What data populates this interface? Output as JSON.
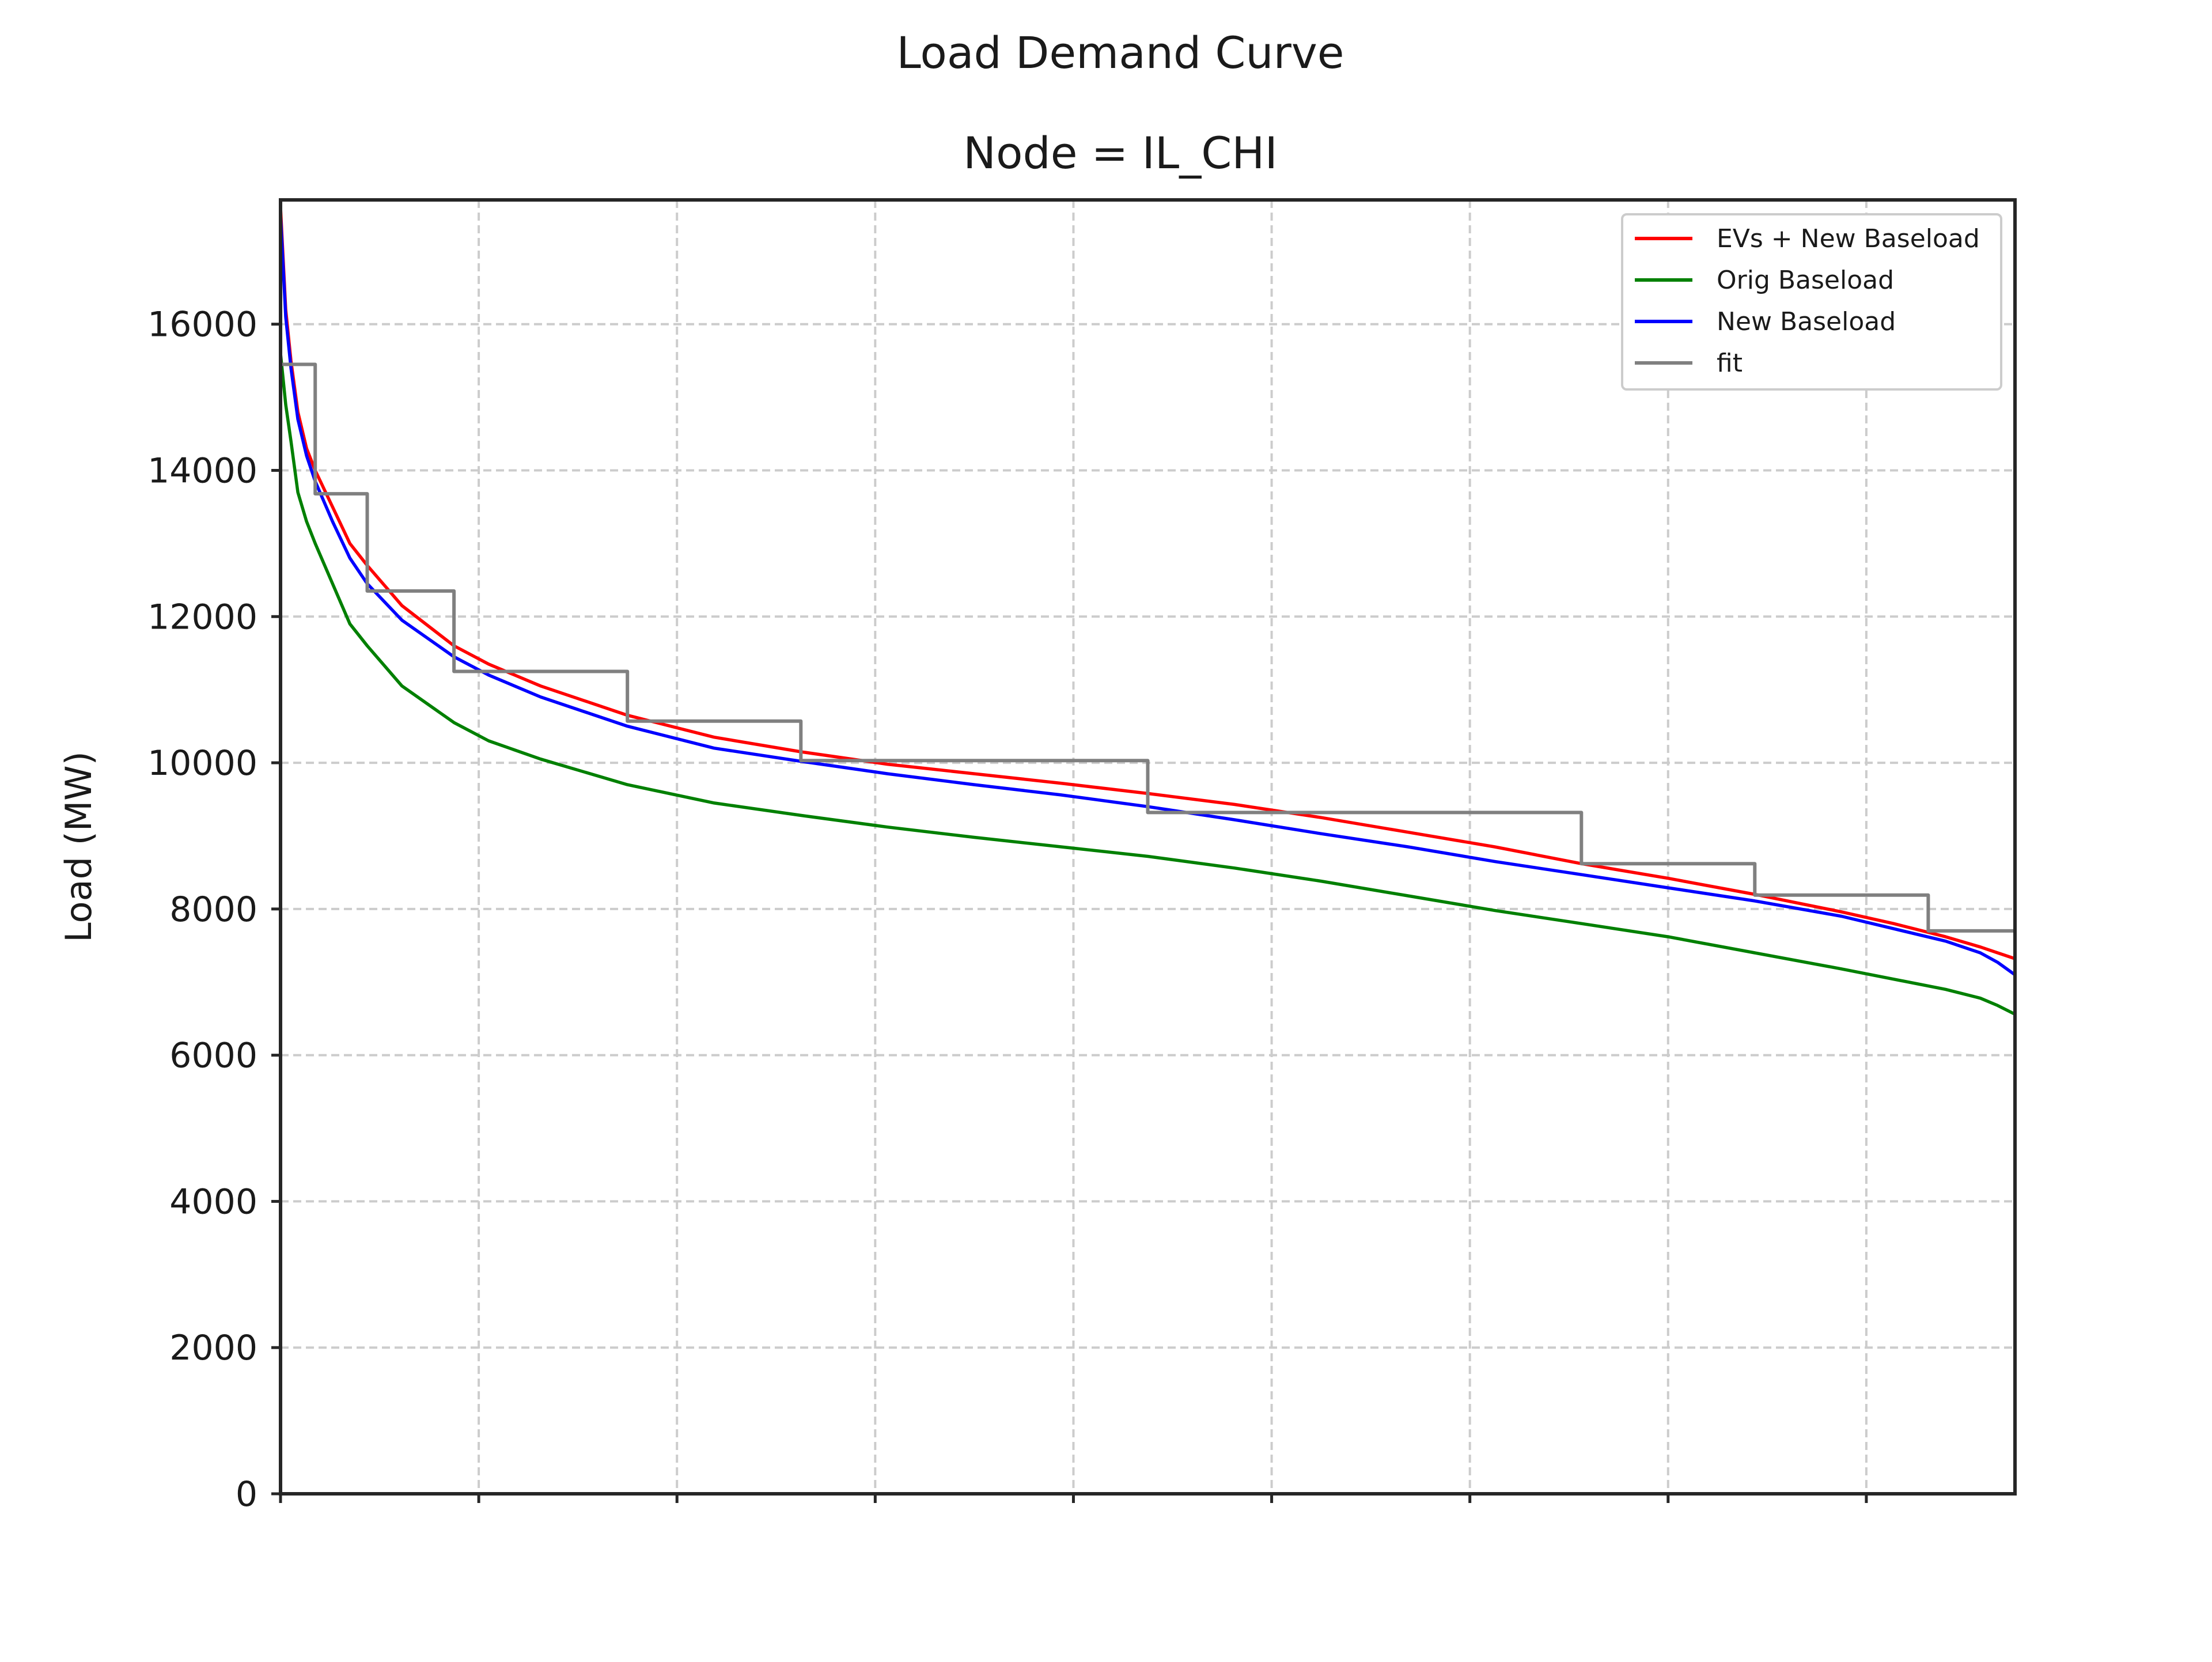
{
  "chart_data": {
    "type": "line",
    "suptitle": "Load Demand Curve",
    "title": "Node = IL_CHI",
    "xlabel": "",
    "ylabel": "Load (MW)",
    "xlim": [
      0,
      1
    ],
    "ylim": [
      0,
      17700
    ],
    "y_ticks": [
      0,
      2000,
      4000,
      6000,
      8000,
      10000,
      12000,
      14000,
      16000
    ],
    "x_tick_count": 9,
    "x_tick_labels": [],
    "grid": true,
    "legend_position": "top-right",
    "series": [
      {
        "name": "EVs + New Baseload",
        "color": "#ff0000",
        "x": [
          0,
          0.003,
          0.006,
          0.01,
          0.015,
          0.02,
          0.03,
          0.04,
          0.05,
          0.07,
          0.1,
          0.12,
          0.15,
          0.2,
          0.25,
          0.3,
          0.35,
          0.4,
          0.45,
          0.5,
          0.55,
          0.6,
          0.65,
          0.7,
          0.75,
          0.8,
          0.85,
          0.9,
          0.93,
          0.96,
          0.98,
          0.99,
          1.0
        ],
        "y": [
          17600,
          16200,
          15500,
          14800,
          14300,
          14000,
          13500,
          13000,
          12700,
          12150,
          11600,
          11350,
          11050,
          10650,
          10350,
          10150,
          9980,
          9850,
          9720,
          9580,
          9430,
          9250,
          9050,
          8850,
          8620,
          8420,
          8200,
          7960,
          7800,
          7620,
          7480,
          7400,
          7320
        ]
      },
      {
        "name": "Orig Baseload",
        "color": "#008000",
        "x": [
          0,
          0.003,
          0.006,
          0.01,
          0.015,
          0.02,
          0.03,
          0.04,
          0.05,
          0.07,
          0.1,
          0.12,
          0.15,
          0.2,
          0.25,
          0.3,
          0.35,
          0.4,
          0.45,
          0.5,
          0.55,
          0.6,
          0.65,
          0.7,
          0.75,
          0.8,
          0.85,
          0.9,
          0.93,
          0.96,
          0.98,
          0.99,
          1.0
        ],
        "y": [
          15600,
          14900,
          14400,
          13700,
          13300,
          13000,
          12450,
          11900,
          11600,
          11050,
          10550,
          10300,
          10050,
          9700,
          9450,
          9280,
          9120,
          8980,
          8850,
          8720,
          8560,
          8380,
          8180,
          7980,
          7800,
          7620,
          7400,
          7180,
          7040,
          6900,
          6780,
          6680,
          6560
        ]
      },
      {
        "name": "New Baseload",
        "color": "#0000ff",
        "x": [
          0,
          0.003,
          0.006,
          0.01,
          0.015,
          0.02,
          0.03,
          0.04,
          0.05,
          0.07,
          0.1,
          0.12,
          0.15,
          0.2,
          0.25,
          0.3,
          0.35,
          0.4,
          0.45,
          0.5,
          0.55,
          0.6,
          0.65,
          0.7,
          0.75,
          0.8,
          0.85,
          0.9,
          0.93,
          0.96,
          0.98,
          0.99,
          1.0
        ],
        "y": [
          17500,
          16100,
          15400,
          14700,
          14200,
          13850,
          13300,
          12800,
          12450,
          11950,
          11450,
          11200,
          10900,
          10500,
          10200,
          10020,
          9850,
          9700,
          9560,
          9400,
          9220,
          9030,
          8850,
          8650,
          8470,
          8290,
          8110,
          7900,
          7730,
          7560,
          7400,
          7270,
          7100
        ]
      },
      {
        "name": "fit",
        "color": "#808080",
        "step": true,
        "x": [
          0,
          0.02,
          0.05,
          0.1,
          0.2,
          0.3,
          0.5,
          0.75,
          0.85,
          0.95,
          1.0
        ],
        "y": [
          15450,
          13680,
          12350,
          11250,
          10570,
          10030,
          9320,
          8620,
          8190,
          7700,
          7700
        ]
      }
    ]
  }
}
